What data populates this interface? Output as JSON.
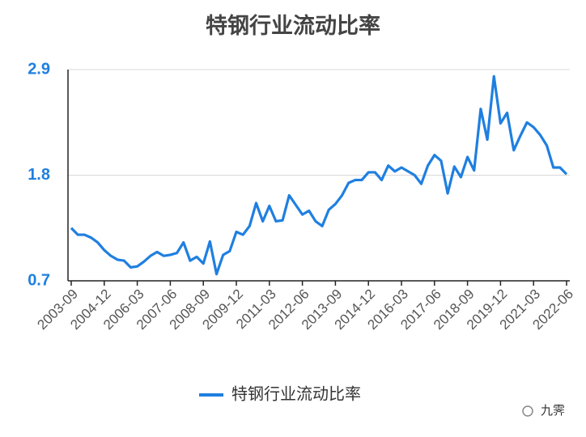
{
  "chart_data": {
    "type": "line",
    "title": "特钢行业流动比率",
    "categories": [
      "2003-09",
      null,
      null,
      null,
      null,
      "2004-12",
      null,
      null,
      null,
      null,
      "2006-03",
      null,
      null,
      null,
      null,
      "2007-06",
      null,
      null,
      null,
      null,
      "2008-09",
      null,
      null,
      null,
      null,
      "2009-12",
      null,
      null,
      null,
      null,
      "2011-03",
      null,
      null,
      null,
      null,
      "2012-06",
      null,
      null,
      null,
      null,
      "2013-09",
      null,
      null,
      null,
      null,
      "2014-12",
      null,
      null,
      null,
      null,
      "2016-03",
      null,
      null,
      null,
      null,
      "2017-06",
      null,
      null,
      null,
      null,
      "2018-09",
      null,
      null,
      null,
      null,
      "2019-12",
      null,
      null,
      null,
      null,
      "2021-03",
      null,
      null,
      null,
      null,
      "2022-06"
    ],
    "series": [
      {
        "name": "特钢行业流动比率",
        "color": "#1f7fe0",
        "values": [
          1.25,
          1.18,
          1.18,
          1.15,
          1.1,
          1.02,
          0.96,
          0.92,
          0.91,
          0.84,
          0.85,
          0.9,
          0.96,
          1.0,
          0.96,
          0.97,
          0.99,
          1.1,
          0.91,
          0.95,
          0.88,
          1.11,
          0.77,
          0.97,
          1.01,
          1.21,
          1.18,
          1.27,
          1.51,
          1.32,
          1.48,
          1.32,
          1.33,
          1.59,
          1.49,
          1.39,
          1.43,
          1.32,
          1.27,
          1.44,
          1.5,
          1.59,
          1.72,
          1.75,
          1.75,
          1.83,
          1.83,
          1.75,
          1.9,
          1.84,
          1.88,
          1.84,
          1.8,
          1.71,
          1.9,
          2.01,
          1.95,
          1.61,
          1.89,
          1.78,
          1.99,
          1.85,
          2.49,
          2.17,
          2.83,
          2.34,
          2.45,
          2.06,
          2.21,
          2.35,
          2.3,
          2.22,
          2.11,
          1.88,
          1.88,
          1.81
        ]
      }
    ],
    "ylim": [
      0.7,
      2.9
    ],
    "yticks": [
      0.7,
      1.8,
      2.9
    ],
    "grid": true,
    "legend": "bottom",
    "watermark": "九霁"
  }
}
